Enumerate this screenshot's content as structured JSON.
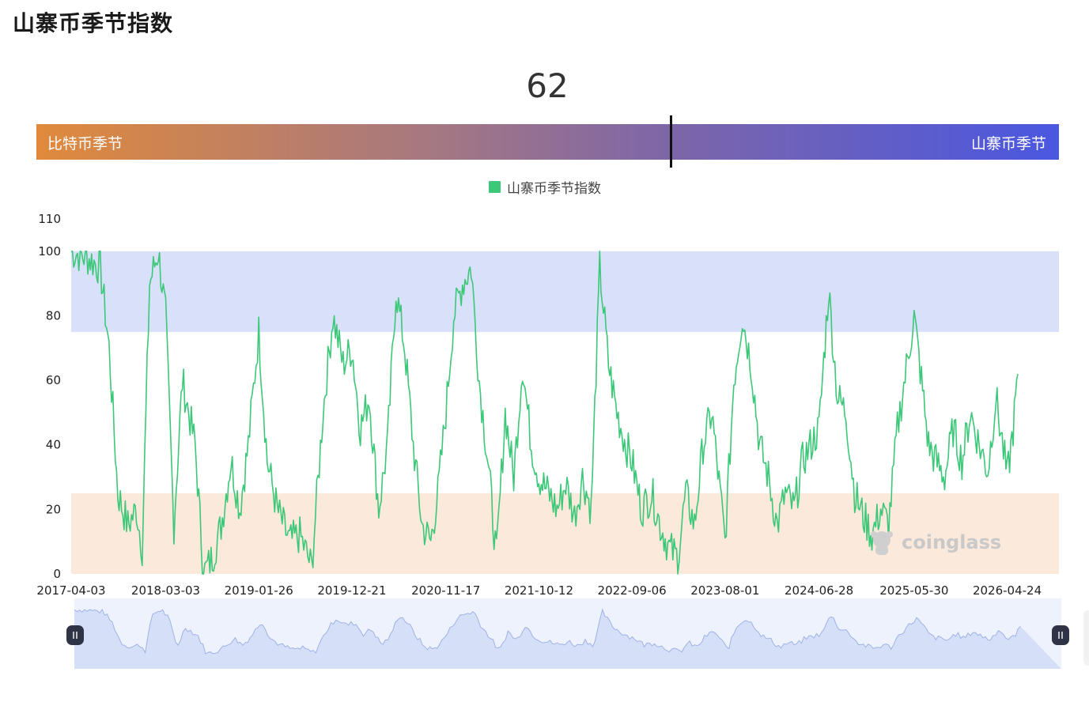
{
  "page": {
    "title": "山寨币季节指数",
    "current_value": "62"
  },
  "season_bar": {
    "left_label": "比特币季节",
    "right_label": "山寨币季节",
    "marker_value": 62
  },
  "watermark": "coinglass",
  "colors": {
    "line": "#3cc878",
    "altcoin_band": "#d8e0fa",
    "bitcoin_band": "#fbe9dc",
    "slider_fill": "#d5e0f8",
    "slider_bg": "#edf2fd"
  },
  "chart_data": {
    "type": "line",
    "legend": [
      "山寨币季节指数"
    ],
    "legend_position": "top-center",
    "grid": false,
    "ylim": [
      0,
      110
    ],
    "yticks": [
      "0",
      "20",
      "40",
      "60",
      "80",
      "100",
      "110"
    ],
    "xticks": [
      "2017-04-03",
      "2018-03-03",
      "2019-01-26",
      "2019-12-21",
      "2020-11-17",
      "2021-10-12",
      "2022-09-06",
      "2023-08-01",
      "2024-06-28",
      "2025-05-30",
      "2026-04-24"
    ],
    "bands": [
      {
        "name": "altcoin-season",
        "from": 75,
        "to": 100
      },
      {
        "name": "bitcoin-season",
        "from": 0,
        "to": 25
      }
    ],
    "series": [
      {
        "name": "山寨币季节指数",
        "x": [
          "2017-04-03",
          "2017-06-01",
          "2017-07-15",
          "2017-08-15",
          "2017-09-15",
          "2017-10-20",
          "2017-11-20",
          "2017-12-10",
          "2018-01-05",
          "2018-02-05",
          "2018-03-03",
          "2018-04-01",
          "2018-05-01",
          "2018-06-15",
          "2018-07-15",
          "2018-08-15",
          "2018-09-15",
          "2018-10-20",
          "2018-11-20",
          "2018-12-20",
          "2019-01-26",
          "2019-02-25",
          "2019-04-01",
          "2019-05-15",
          "2019-06-20",
          "2019-08-01",
          "2019-09-10",
          "2019-10-15",
          "2019-11-20",
          "2019-12-21",
          "2020-01-20",
          "2020-02-20",
          "2020-03-25",
          "2020-04-25",
          "2020-05-25",
          "2020-06-25",
          "2020-07-25",
          "2020-08-25",
          "2020-09-25",
          "2020-10-20",
          "2020-11-17",
          "2020-12-15",
          "2021-01-15",
          "2021-02-15",
          "2021-03-15",
          "2021-04-15",
          "2021-05-15",
          "2021-06-15",
          "2021-07-15",
          "2021-08-15",
          "2021-09-15",
          "2021-10-12",
          "2021-11-15",
          "2021-12-15",
          "2022-01-15",
          "2022-02-15",
          "2022-03-15",
          "2022-04-15",
          "2022-05-15",
          "2022-06-15",
          "2022-07-15",
          "2022-08-15",
          "2022-09-06",
          "2022-10-10",
          "2022-11-15",
          "2022-12-15",
          "2023-01-15",
          "2023-02-15",
          "2023-03-15",
          "2023-04-15",
          "2023-05-15",
          "2023-06-15",
          "2023-08-01",
          "2023-09-01",
          "2023-10-01",
          "2023-11-01",
          "2023-12-01",
          "2024-01-01",
          "2024-02-01",
          "2024-03-01",
          "2024-04-01",
          "2024-05-01",
          "2024-06-28",
          "2024-08-01",
          "2024-09-01",
          "2024-10-01",
          "2024-11-01",
          "2024-12-01",
          "2025-01-01",
          "2025-02-01",
          "2025-03-01",
          "2025-04-01",
          "2025-05-30",
          "2025-06-25",
          "2025-07-20",
          "2025-08-15",
          "2025-09-15",
          "2025-10-15",
          "2025-11-15",
          "2025-12-15",
          "2026-01-15",
          "2026-02-15",
          "2026-03-15",
          "2026-04-24",
          "2026-05-15",
          "2026-06-01"
        ],
        "values": [
          100,
          98,
          95,
          70,
          25,
          15,
          20,
          8,
          90,
          100,
          80,
          15,
          60,
          40,
          0,
          5,
          15,
          35,
          20,
          40,
          75,
          35,
          20,
          10,
          12,
          2,
          50,
          80,
          65,
          70,
          45,
          55,
          20,
          40,
          88,
          70,
          40,
          15,
          10,
          25,
          50,
          80,
          90,
          95,
          60,
          35,
          5,
          50,
          30,
          65,
          40,
          30,
          25,
          20,
          28,
          18,
          30,
          20,
          95,
          65,
          50,
          40,
          35,
          20,
          25,
          15,
          8,
          5,
          25,
          15,
          40,
          50,
          10,
          60,
          80,
          65,
          40,
          30,
          15,
          25,
          20,
          35,
          45,
          88,
          55,
          50,
          25,
          18,
          12,
          20,
          15,
          45,
          80,
          60,
          40,
          35,
          30,
          45,
          35,
          50,
          40,
          32,
          55,
          30,
          45,
          62
        ]
      }
    ]
  }
}
